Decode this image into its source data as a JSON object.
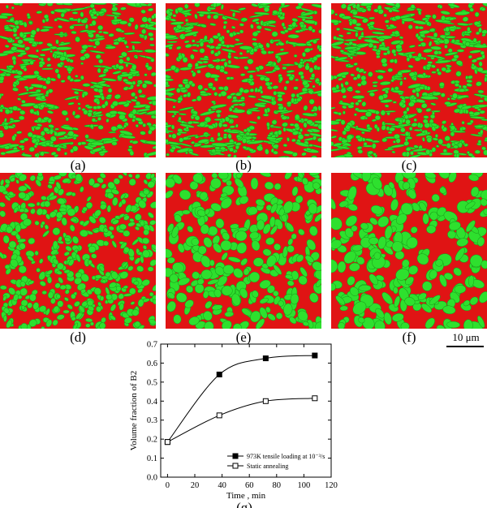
{
  "figure": {
    "panels": [
      {
        "label": "(a)",
        "green_fraction": 0.3
      },
      {
        "label": "(b)",
        "green_fraction": 0.33
      },
      {
        "label": "(c)",
        "green_fraction": 0.33
      },
      {
        "label": "(d)",
        "green_fraction": 0.45
      },
      {
        "label": "(e)",
        "green_fraction": 0.55
      },
      {
        "label": "(f)",
        "green_fraction": 0.62
      }
    ],
    "colors": {
      "matrix_red": "#e01414",
      "phase_green": "#2ee02e",
      "phase_border": "#1a9a1a"
    },
    "scale_bar": {
      "label": "10 μm"
    },
    "chart_label": "(g)"
  },
  "chart_data": {
    "type": "line",
    "xlabel": "Time , min",
    "ylabel": "Volume fraction of B2",
    "xlim": [
      -5,
      120
    ],
    "ylim": [
      0.0,
      0.7
    ],
    "xticks": [
      0,
      20,
      40,
      60,
      80,
      100,
      120
    ],
    "yticks": [
      0.0,
      0.1,
      0.2,
      0.3,
      0.4,
      0.5,
      0.6,
      0.7
    ],
    "legend_position": "bottom-right",
    "series": [
      {
        "name": "973K tensile loading at 10⁻³/s",
        "marker": "filled-square",
        "x": [
          0,
          38,
          72,
          108
        ],
        "y": [
          0.185,
          0.54,
          0.625,
          0.64
        ]
      },
      {
        "name": "Static annealing",
        "marker": "open-square",
        "x": [
          0,
          38,
          72,
          108
        ],
        "y": [
          0.185,
          0.325,
          0.4,
          0.415
        ]
      }
    ]
  }
}
